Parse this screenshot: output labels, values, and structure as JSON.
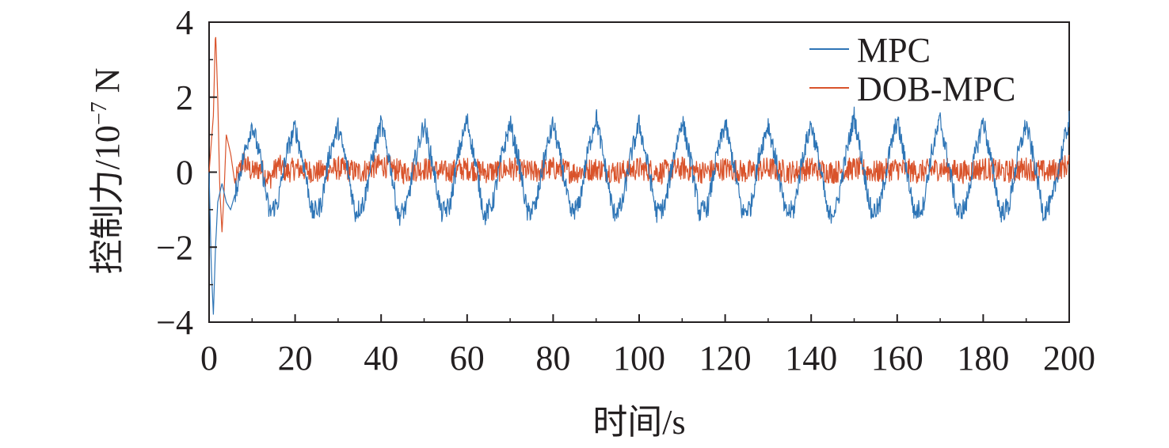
{
  "chart_data": {
    "type": "line",
    "xlabel": "时间/s",
    "ylabel": "控制力/10",
    "ylabel_exponent": "−7",
    "ylabel_unit": " N",
    "xlim": [
      0,
      200
    ],
    "ylim": [
      -4,
      4
    ],
    "x_ticks": [
      0,
      20,
      40,
      60,
      80,
      100,
      120,
      140,
      160,
      180,
      200
    ],
    "x_tick_labels": [
      "0",
      "20",
      "40",
      "60",
      "80",
      "100",
      "120",
      "140",
      "160",
      "180",
      "200"
    ],
    "y_ticks": [
      -4,
      -2,
      0,
      2,
      4
    ],
    "y_tick_labels": [
      "−4",
      "−2",
      "0",
      "2",
      "4"
    ],
    "grid": false,
    "legend_position": "top-right",
    "series": [
      {
        "name": "MPC",
        "color": "#2e75b6",
        "x": [
          0,
          0.5,
          1,
          1.5,
          2,
          3,
          4,
          5,
          6,
          8,
          10,
          12,
          14,
          16,
          18,
          20,
          22,
          24,
          26,
          28,
          30,
          32,
          34,
          36,
          38,
          40,
          42,
          44,
          46,
          48,
          50,
          52,
          54,
          56,
          58,
          60,
          62,
          64,
          66,
          68,
          70,
          72,
          74,
          76,
          78,
          80,
          82,
          84,
          86,
          88,
          90,
          92,
          94,
          96,
          98,
          100,
          102,
          104,
          106,
          108,
          110,
          112,
          114,
          116,
          118,
          120,
          122,
          124,
          126,
          128,
          130,
          132,
          134,
          136,
          138,
          140,
          142,
          144,
          146,
          148,
          150,
          152,
          154,
          156,
          158,
          160,
          162,
          164,
          166,
          168,
          170,
          172,
          174,
          176,
          178,
          180,
          182,
          184,
          186,
          188,
          190,
          192,
          194,
          196,
          198,
          200
        ],
        "values": [
          0,
          -2.5,
          -3.8,
          -2.0,
          -0.8,
          -0.3,
          -0.8,
          -1.0,
          -0.6,
          0.4,
          1.3,
          0.3,
          -1.1,
          -0.8,
          0.5,
          1.2,
          0.2,
          -1.1,
          -0.9,
          0.5,
          1.2,
          0.2,
          -1.1,
          -0.8,
          0.4,
          1.3,
          0.3,
          -1.2,
          -0.9,
          0.4,
          1.3,
          0.2,
          -1.1,
          -0.9,
          0.5,
          1.4,
          0.2,
          -1.2,
          -0.8,
          0.4,
          1.3,
          0.3,
          -1.1,
          -0.9,
          0.4,
          1.3,
          0.2,
          -1.1,
          -0.9,
          0.5,
          1.5,
          0.2,
          -1.1,
          -0.9,
          0.4,
          1.3,
          0.2,
          -1.1,
          -0.9,
          0.4,
          1.4,
          0.3,
          -1.1,
          -0.9,
          0.4,
          1.3,
          0.2,
          -1.1,
          -0.9,
          0.5,
          1.3,
          0.2,
          -1.1,
          -1.0,
          0.4,
          1.3,
          0.2,
          -1.2,
          -0.9,
          0.4,
          1.5,
          0.2,
          -1.1,
          -0.9,
          0.4,
          1.4,
          0.2,
          -1.1,
          -0.9,
          0.5,
          1.4,
          0.2,
          -1.1,
          -0.9,
          0.4,
          1.4,
          0.2,
          -1.1,
          -0.9,
          0.4,
          1.3,
          0.2,
          -1.1,
          -0.8,
          0.4,
          1.4
        ]
      },
      {
        "name": "DOB-MPC",
        "color": "#d9532b",
        "x": [
          0,
          1,
          1.5,
          2,
          2.5,
          3,
          3.5,
          4,
          5,
          6,
          8,
          10,
          12,
          14,
          16,
          18,
          20,
          25,
          30,
          35,
          40,
          45,
          50,
          55,
          60,
          65,
          70,
          75,
          80,
          85,
          90,
          95,
          100,
          105,
          110,
          115,
          120,
          125,
          130,
          135,
          140,
          145,
          150,
          155,
          160,
          165,
          170,
          175,
          180,
          185,
          190,
          195,
          200
        ],
        "values": [
          0,
          1.5,
          3.8,
          2.0,
          -0.5,
          -1.6,
          -0.5,
          1.0,
          0.5,
          -0.3,
          0.3,
          0.0,
          0.1,
          -0.2,
          0.2,
          0.0,
          0.1,
          0.0,
          0.1,
          0.0,
          0.2,
          0.0,
          0.1,
          0.0,
          0.1,
          0.0,
          0.1,
          0.0,
          0.1,
          0.0,
          0.1,
          0.0,
          0.1,
          0.0,
          0.1,
          0.0,
          0.1,
          0.0,
          0.1,
          0.0,
          0.1,
          0.0,
          0.1,
          0.0,
          0.1,
          0.0,
          0.1,
          0.0,
          0.1,
          0.0,
          0.1,
          0.0,
          0.2
        ]
      }
    ]
  }
}
